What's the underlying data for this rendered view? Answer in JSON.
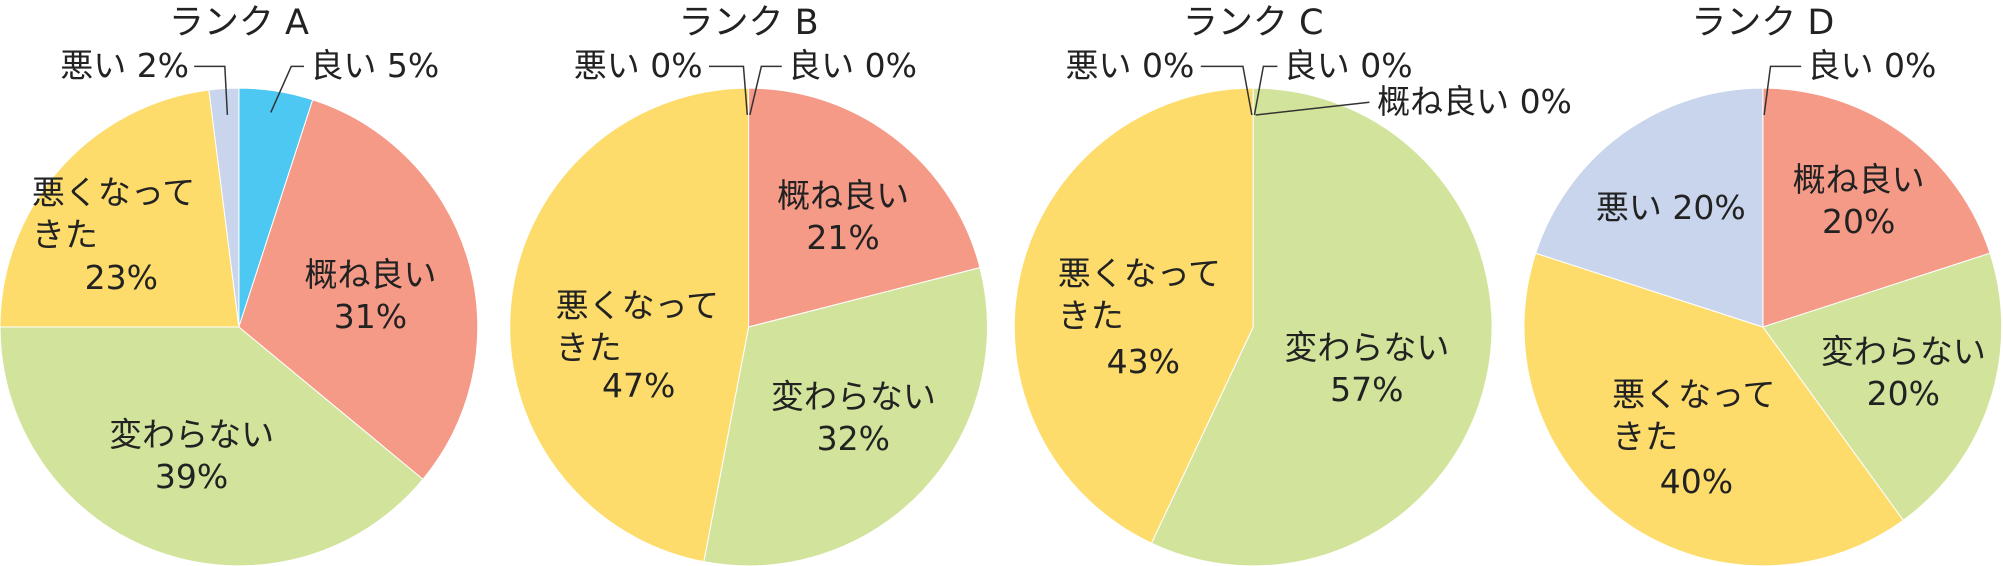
{
  "chart_data": [
    {
      "type": "pie",
      "title": "ランク A",
      "categories": [
        "良い",
        "概ね良い",
        "変わらない",
        "悪くなってきた",
        "悪い"
      ],
      "values": [
        5,
        31,
        39,
        23,
        2
      ],
      "value_labels": [
        "5%",
        "31%",
        "39%",
        "23%",
        "2%"
      ],
      "colors": [
        "#4cc8f2",
        "#f49a87",
        "#d2e49c",
        "#fddc6c",
        "#c9d5ec"
      ]
    },
    {
      "type": "pie",
      "title": "ランク B",
      "categories": [
        "良い",
        "概ね良い",
        "変わらない",
        "悪くなってきた",
        "悪い"
      ],
      "values": [
        0,
        21,
        32,
        47,
        0
      ],
      "value_labels": [
        "0%",
        "21%",
        "32%",
        "47%",
        "0%"
      ],
      "colors": [
        "#4cc8f2",
        "#f49a87",
        "#d2e49c",
        "#fddc6c",
        "#c9d5ec"
      ]
    },
    {
      "type": "pie",
      "title": "ランク C",
      "categories": [
        "良い",
        "概ね良い",
        "変わらない",
        "悪くなってきた",
        "悪い"
      ],
      "values": [
        0,
        0,
        57,
        43,
        0
      ],
      "value_labels": [
        "0%",
        "0%",
        "57%",
        "43%",
        "0%"
      ],
      "colors": [
        "#4cc8f2",
        "#f49a87",
        "#d2e49c",
        "#fddc6c",
        "#c9d5ec"
      ]
    },
    {
      "type": "pie",
      "title": "ランク D",
      "categories": [
        "良い",
        "概ね良い",
        "変わらない",
        "悪くなってきた",
        "悪い"
      ],
      "values": [
        0,
        20,
        20,
        40,
        20
      ],
      "value_labels": [
        "0%",
        "20%",
        "20%",
        "40%",
        "20%"
      ],
      "colors": [
        "#4cc8f2",
        "#f49a87",
        "#d2e49c",
        "#fddc6c",
        "#c9d5ec"
      ]
    }
  ]
}
